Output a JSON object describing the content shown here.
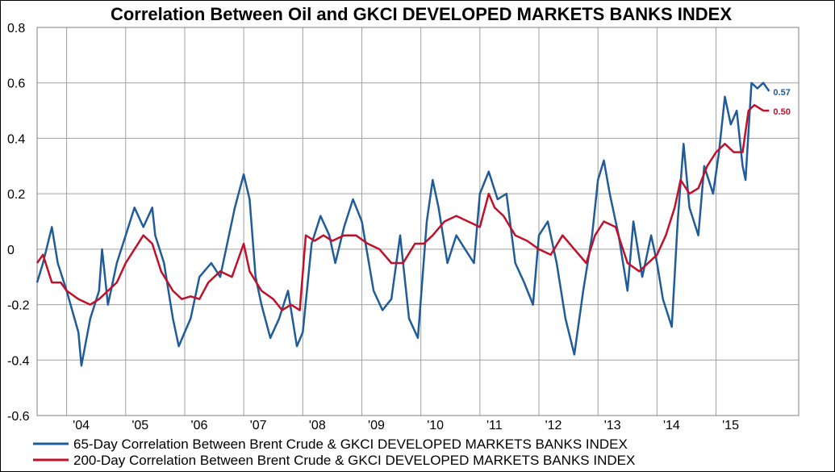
{
  "chart_data": {
    "type": "line",
    "title": "Correlation Between Oil and GKCI DEVELOPED MARKETS BANKS INDEX",
    "xlabel": "",
    "ylabel": "",
    "xlim": [
      2003.5,
      2016.4
    ],
    "ylim": [
      -0.6,
      0.8
    ],
    "y_ticks": [
      -0.6,
      -0.4,
      -0.2,
      0,
      0.2,
      0.4,
      0.6,
      0.8
    ],
    "y_tick_labels": [
      "-0.6",
      "-0.4",
      "-0.2",
      "0",
      "0.2",
      "0.4",
      "0.6",
      "0.8"
    ],
    "x_tick_labels": [
      "'04",
      "'05",
      "'06",
      "'07",
      "'08",
      "'09",
      "'10",
      "'11",
      "'12",
      "'13",
      "'14",
      "'15"
    ],
    "x_tick_positions": [
      2004.0,
      2005.0,
      2006.0,
      2007.0,
      2008.0,
      2009.0,
      2010.0,
      2011.0,
      2012.0,
      2013.0,
      2014.0,
      2015.0
    ],
    "grid": true,
    "legend_position": "bottom",
    "series": [
      {
        "name": "65-Day Correlation Between Brent Crude & GKCI DEVELOPED MARKETS BANKS INDEX",
        "color": "#1f5c99",
        "end_label": "0.57",
        "x": [
          2003.5,
          2003.6,
          2003.75,
          2003.85,
          2004.0,
          2004.2,
          2004.25,
          2004.4,
          2004.55,
          2004.6,
          2004.7,
          2004.85,
          2005.0,
          2005.15,
          2005.3,
          2005.45,
          2005.5,
          2005.65,
          2005.8,
          2005.9,
          2006.0,
          2006.1,
          2006.25,
          2006.45,
          2006.6,
          2006.75,
          2006.85,
          2007.0,
          2007.1,
          2007.2,
          2007.3,
          2007.45,
          2007.6,
          2007.75,
          2007.9,
          2008.0,
          2008.15,
          2008.3,
          2008.45,
          2008.55,
          2008.7,
          2008.85,
          2009.0,
          2009.2,
          2009.35,
          2009.5,
          2009.65,
          2009.8,
          2009.95,
          2010.1,
          2010.2,
          2010.3,
          2010.45,
          2010.6,
          2010.75,
          2010.9,
          2011.0,
          2011.15,
          2011.3,
          2011.45,
          2011.6,
          2011.75,
          2011.9,
          2012.0,
          2012.15,
          2012.3,
          2012.45,
          2012.6,
          2012.75,
          2012.9,
          2013.0,
          2013.1,
          2013.2,
          2013.35,
          2013.5,
          2013.6,
          2013.75,
          2013.9,
          2014.0,
          2014.1,
          2014.25,
          2014.35,
          2014.45,
          2014.55,
          2014.7,
          2014.8,
          2014.95,
          2015.05,
          2015.15,
          2015.25,
          2015.35,
          2015.45,
          2015.5,
          2015.6,
          2015.7,
          2015.8,
          2015.9
        ],
        "y": [
          -0.12,
          -0.05,
          0.08,
          -0.05,
          -0.15,
          -0.3,
          -0.42,
          -0.25,
          -0.15,
          0.0,
          -0.2,
          -0.05,
          0.05,
          0.15,
          0.08,
          0.15,
          0.05,
          -0.05,
          -0.25,
          -0.35,
          -0.3,
          -0.25,
          -0.1,
          -0.05,
          -0.1,
          0.05,
          0.15,
          0.27,
          0.18,
          -0.1,
          -0.2,
          -0.32,
          -0.25,
          -0.15,
          -0.35,
          -0.3,
          0.02,
          0.12,
          0.05,
          -0.05,
          0.08,
          0.18,
          0.1,
          -0.15,
          -0.22,
          -0.18,
          0.05,
          -0.25,
          -0.32,
          0.1,
          0.25,
          0.15,
          -0.05,
          0.05,
          0.0,
          -0.05,
          0.2,
          0.28,
          0.18,
          0.2,
          -0.05,
          -0.12,
          -0.2,
          0.05,
          0.1,
          -0.05,
          -0.25,
          -0.38,
          -0.15,
          0.05,
          0.25,
          0.32,
          0.2,
          0.05,
          -0.15,
          0.1,
          -0.1,
          0.05,
          -0.05,
          -0.18,
          -0.28,
          0.1,
          0.38,
          0.15,
          0.05,
          0.3,
          0.2,
          0.35,
          0.55,
          0.45,
          0.5,
          0.3,
          0.25,
          0.6,
          0.58,
          0.6,
          0.57
        ]
      },
      {
        "name": "200-Day Correlation Between Brent Crude & GKCI DEVELOPED MARKETS BANKS INDEX",
        "color": "#c0102a",
        "end_label": "0.50",
        "x": [
          2003.5,
          2003.6,
          2003.75,
          2003.9,
          2004.0,
          2004.2,
          2004.4,
          2004.55,
          2004.7,
          2004.85,
          2005.0,
          2005.15,
          2005.3,
          2005.45,
          2005.6,
          2005.8,
          2005.95,
          2006.1,
          2006.25,
          2006.4,
          2006.6,
          2006.8,
          2007.0,
          2007.1,
          2007.3,
          2007.5,
          2007.65,
          2007.8,
          2007.95,
          2008.05,
          2008.2,
          2008.35,
          2008.5,
          2008.7,
          2008.9,
          2009.1,
          2009.3,
          2009.5,
          2009.7,
          2009.9,
          2010.05,
          2010.2,
          2010.4,
          2010.6,
          2010.8,
          2011.0,
          2011.15,
          2011.25,
          2011.4,
          2011.6,
          2011.8,
          2012.0,
          2012.2,
          2012.4,
          2012.6,
          2012.8,
          2012.95,
          2013.1,
          2013.3,
          2013.5,
          2013.7,
          2013.85,
          2014.0,
          2014.15,
          2014.3,
          2014.4,
          2014.55,
          2014.7,
          2014.85,
          2015.0,
          2015.15,
          2015.3,
          2015.45,
          2015.55,
          2015.65,
          2015.8,
          2015.9
        ],
        "y": [
          -0.05,
          -0.02,
          -0.12,
          -0.12,
          -0.15,
          -0.18,
          -0.2,
          -0.18,
          -0.15,
          -0.12,
          -0.05,
          0.0,
          0.05,
          0.02,
          -0.08,
          -0.15,
          -0.18,
          -0.17,
          -0.18,
          -0.12,
          -0.08,
          -0.1,
          0.02,
          -0.08,
          -0.15,
          -0.18,
          -0.22,
          -0.2,
          -0.22,
          0.05,
          0.03,
          0.05,
          0.03,
          0.05,
          0.05,
          0.02,
          0.0,
          -0.05,
          -0.05,
          0.02,
          0.02,
          0.05,
          0.1,
          0.12,
          0.1,
          0.08,
          0.2,
          0.15,
          0.12,
          0.05,
          0.03,
          0.0,
          -0.02,
          0.05,
          0.0,
          -0.05,
          0.05,
          0.1,
          0.08,
          -0.05,
          -0.08,
          -0.05,
          -0.02,
          0.05,
          0.15,
          0.25,
          0.2,
          0.22,
          0.3,
          0.35,
          0.38,
          0.35,
          0.35,
          0.5,
          0.52,
          0.5,
          0.5
        ]
      }
    ]
  }
}
